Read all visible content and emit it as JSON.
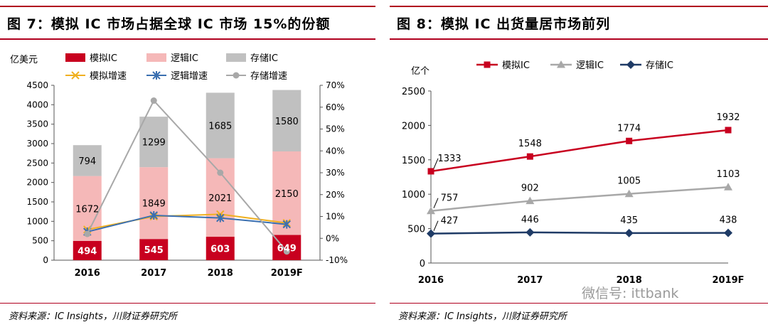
{
  "left_panel": {
    "title": "图 7：模拟 IC 市场占据全球 IC 市场 15%的份额",
    "source": "资料来源：IC Insights，川财证券研究所"
  },
  "right_panel": {
    "title": "图 8：模拟 IC 出货量居市场前列",
    "source": "资料来源：IC Insights，川财证券研究所"
  },
  "watermark": "微信号: ittbank",
  "chart_data": [
    {
      "type": "bar",
      "stacked": true,
      "ylabel": "亿美元",
      "categories": [
        "2016",
        "2017",
        "2018",
        "2019F"
      ],
      "ylim": [
        0,
        4500
      ],
      "yticks": [
        "0",
        "500",
        "1000",
        "1500",
        "2000",
        "2500",
        "3000",
        "3500",
        "4000",
        "4500"
      ],
      "y2lim": [
        -10,
        70
      ],
      "y2ticks": [
        "-10%",
        "0%",
        "10%",
        "20%",
        "30%",
        "40%",
        "50%",
        "60%",
        "70%"
      ],
      "series": [
        {
          "name": "模拟IC",
          "values": [
            494,
            545,
            603,
            649
          ],
          "color": "#c8001f"
        },
        {
          "name": "逻辑IC",
          "values": [
            1672,
            1849,
            2021,
            2150
          ],
          "color": "#f5b8b8"
        },
        {
          "name": "存储IC",
          "values": [
            794,
            1299,
            1685,
            1580
          ],
          "color": "#c0c0c0"
        }
      ],
      "line_series": [
        {
          "name": "模拟增速",
          "values": [
            4,
            10,
            11,
            7
          ],
          "color": "#f0b020",
          "marker": "x"
        },
        {
          "name": "逻辑增速",
          "values": [
            3,
            10.5,
            9.3,
            6.4
          ],
          "color": "#3a6fb0",
          "marker": "star"
        },
        {
          "name": "存储增速",
          "values": [
            2,
            63,
            30,
            -6
          ],
          "color": "#a8a8a8",
          "marker": "circle"
        }
      ],
      "grid": false,
      "legend": "top"
    },
    {
      "type": "line",
      "ylabel": "亿个",
      "categories": [
        "2016",
        "2017",
        "2018",
        "2019F"
      ],
      "ylim": [
        0,
        2500
      ],
      "yticks": [
        "0",
        "500",
        "1000",
        "1500",
        "2000",
        "2500"
      ],
      "series": [
        {
          "name": "模拟IC",
          "values": [
            1333,
            1548,
            1774,
            1932
          ],
          "color": "#c8001f",
          "marker": "square"
        },
        {
          "name": "逻辑IC",
          "values": [
            757,
            902,
            1005,
            1103
          ],
          "color": "#a8a8a8",
          "marker": "triangle"
        },
        {
          "name": "存储IC",
          "values": [
            427,
            446,
            435,
            438
          ],
          "color": "#1f3b66",
          "marker": "diamond"
        }
      ],
      "grid": false,
      "legend": "top"
    }
  ]
}
